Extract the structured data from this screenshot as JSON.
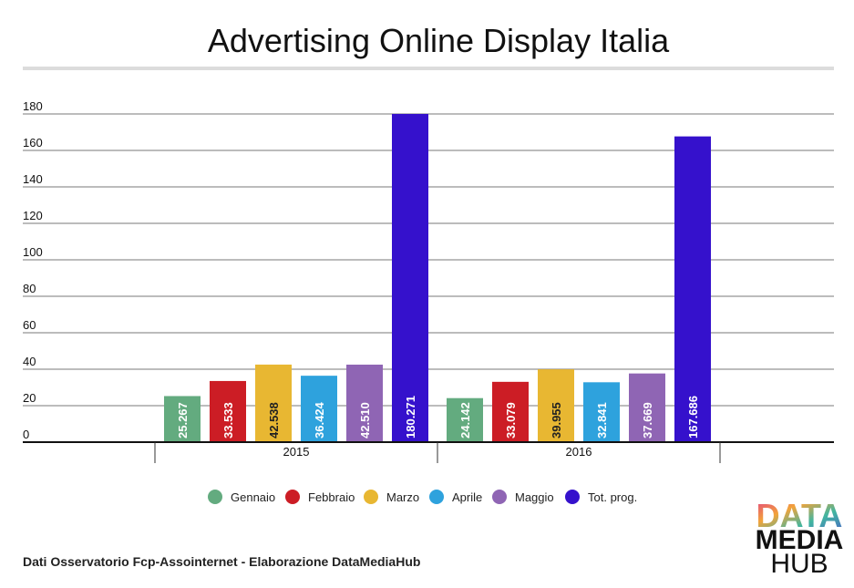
{
  "chart_data": {
    "type": "bar",
    "title": "Advertising Online Display Italia",
    "categories": [
      "2015",
      "2016"
    ],
    "series": [
      {
        "name": "Gennaio",
        "color": "#63ab7f",
        "values": [
          25.267,
          24.142
        ],
        "labels": [
          "25.267",
          "24.142"
        ]
      },
      {
        "name": "Febbraio",
        "color": "#cc1d25",
        "values": [
          33.533,
          33.079
        ],
        "labels": [
          "33.533",
          "33.079"
        ]
      },
      {
        "name": "Marzo",
        "color": "#e8b732",
        "values": [
          42.538,
          39.955
        ],
        "labels": [
          "42.538",
          "39.955"
        ]
      },
      {
        "name": "Aprile",
        "color": "#2ea2dd",
        "values": [
          36.424,
          32.841
        ],
        "labels": [
          "36.424",
          "32.841"
        ]
      },
      {
        "name": "Maggio",
        "color": "#8f65b4",
        "values": [
          42.51,
          37.669
        ],
        "labels": [
          "42.510",
          "37.669"
        ]
      },
      {
        "name": "Tot. prog.",
        "color": "#3511cc",
        "values": [
          180.271,
          167.686
        ],
        "labels": [
          "180.271",
          "167.686"
        ]
      }
    ],
    "yticks": [
      0,
      20,
      40,
      60,
      80,
      100,
      120,
      140,
      160,
      180
    ],
    "ylim": [
      0,
      180
    ],
    "grid": true,
    "legend_position": "bottom",
    "xlabel": "",
    "ylabel": ""
  },
  "footer": {
    "source": "Dati  Osservatorio Fcp-Assointernet - Elaborazione DataMediaHub"
  },
  "logo": {
    "line1": "DATA",
    "line2": "MEDIA",
    "line3": "HUB"
  }
}
